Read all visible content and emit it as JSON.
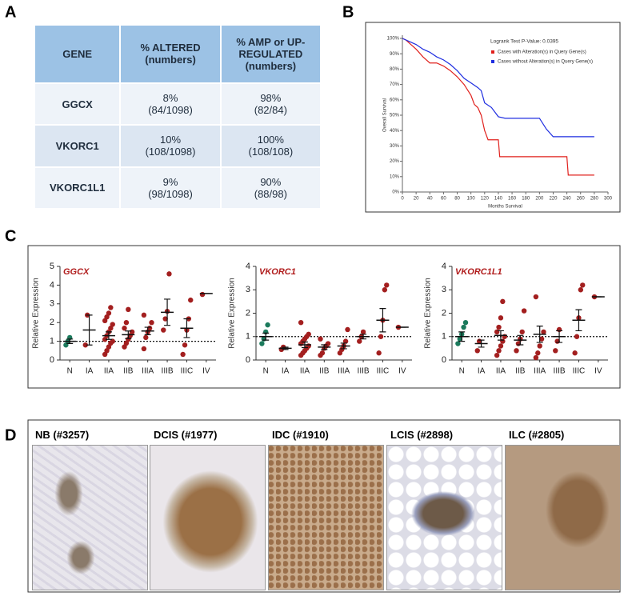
{
  "panel_labels": [
    "A",
    "B",
    "C",
    "D"
  ],
  "table": {
    "header": [
      "GENE",
      "% ALTERED\n(numbers)",
      "% AMP or UP-\nREGULATED\n(numbers)"
    ],
    "rows": [
      [
        "GGCX",
        "8%\n(84/1098)",
        "98%\n(82/84)"
      ],
      [
        "VKORC1",
        "10%\n(108/1098)",
        "100%\n(108/108)"
      ],
      [
        "VKORC1L1",
        "9%\n(98/1098)",
        "90%\n(88/98)"
      ]
    ]
  },
  "image_labels": [
    "NB (#3257)",
    "DCIS (#1977)",
    "IDC (#1910)",
    "LCIS (#2898)",
    "ILC (#2805)"
  ],
  "chart_data": [
    {
      "type": "line",
      "annotation": "Logrank Test P-Value: 0.0395",
      "x_label": "Months Survival",
      "y_label": "Overall Survival",
      "xlim": [
        0,
        300
      ],
      "ylim": [
        0,
        100
      ],
      "xticks": [
        0,
        20,
        40,
        60,
        80,
        100,
        120,
        140,
        160,
        180,
        200,
        220,
        240,
        260,
        280,
        300
      ],
      "yticks": [
        {
          "value": 0,
          "label": "0%"
        },
        {
          "value": 10,
          "label": "10%"
        },
        {
          "value": 20,
          "label": "20%"
        },
        {
          "value": 30,
          "label": "30%"
        },
        {
          "value": 40,
          "label": "40%"
        },
        {
          "value": 50,
          "label": "50%"
        },
        {
          "value": 60,
          "label": "60%"
        },
        {
          "value": 70,
          "label": "70%"
        },
        {
          "value": 80,
          "label": "80%"
        },
        {
          "value": 90,
          "label": "90%"
        },
        {
          "value": 100,
          "label": "100%"
        }
      ],
      "series": [
        {
          "name": "Cases with Alteration(s) in Query Gene(s)",
          "color": "#e0201c",
          "x": [
            0,
            5,
            10,
            20,
            30,
            40,
            50,
            60,
            70,
            80,
            90,
            100,
            105,
            110,
            115,
            120,
            125,
            140,
            142,
            240,
            242,
            280
          ],
          "values": [
            100,
            99,
            97,
            93,
            88,
            84,
            84,
            82,
            79,
            75,
            70,
            63,
            57,
            55,
            50,
            40,
            34,
            34,
            23,
            23,
            11,
            11
          ]
        },
        {
          "name": "Cases without Alteration(s) in Query Gene(s)",
          "color": "#1f2ee0",
          "x": [
            0,
            10,
            20,
            30,
            40,
            50,
            60,
            70,
            80,
            90,
            100,
            110,
            115,
            120,
            130,
            140,
            150,
            200,
            210,
            220,
            280
          ],
          "values": [
            100,
            98,
            96,
            93,
            91,
            88,
            86,
            83,
            79,
            74,
            71,
            68,
            66,
            58,
            55,
            49,
            48,
            48,
            41,
            36,
            36
          ]
        }
      ]
    },
    {
      "type": "strip",
      "title": "GGCX",
      "y_label": "Relative Expression",
      "ylim": [
        0,
        5
      ],
      "yticks": [
        0,
        1,
        2,
        3,
        4,
        5
      ],
      "reference_line": 1,
      "categories": [
        "N",
        "IA",
        "IIA",
        "IIB",
        "IIIA",
        "IIIB",
        "IIIC",
        "IV"
      ],
      "colors": [
        "#1b7a5c",
        "#a31f1f",
        "#a31f1f",
        "#a31f1f",
        "#a31f1f",
        "#a31f1f",
        "#a31f1f",
        "#a31f1f"
      ],
      "points": [
        [
          0.8,
          1.0,
          1.2
        ],
        [
          0.8,
          2.4
        ],
        [
          0.3,
          0.5,
          0.7,
          0.9,
          1.0,
          1.1,
          1.3,
          1.5,
          1.7,
          1.9,
          2.1,
          2.3,
          2.5,
          2.8
        ],
        [
          0.7,
          0.9,
          1.1,
          1.3,
          1.5,
          1.7,
          2.0,
          2.7
        ],
        [
          0.6,
          1.2,
          1.5,
          1.7,
          2.0,
          2.4
        ],
        [
          1.6,
          2.2,
          2.6,
          4.6
        ],
        [
          0.3,
          0.8,
          1.6,
          2.2,
          3.2
        ],
        [
          3.5
        ]
      ],
      "means": [
        1.0,
        1.6,
        1.3,
        1.35,
        1.55,
        2.55,
        1.7,
        3.55
      ],
      "sem": [
        0.12,
        0.8,
        0.2,
        0.2,
        0.2,
        0.7,
        0.5,
        0
      ]
    },
    {
      "type": "strip",
      "title": "VKORC1",
      "y_label": "Relative Expression",
      "ylim": [
        0,
        4
      ],
      "yticks": [
        0,
        1,
        2,
        3,
        4
      ],
      "reference_line": 1,
      "categories": [
        "N",
        "IA",
        "IIA",
        "IIB",
        "IIIA",
        "IIIB",
        "IIIC",
        "IV"
      ],
      "colors": [
        "#1b7a5c",
        "#a31f1f",
        "#a31f1f",
        "#a31f1f",
        "#a31f1f",
        "#a31f1f",
        "#a31f1f",
        "#a31f1f"
      ],
      "points": [
        [
          0.7,
          0.9,
          1.2,
          1.5
        ],
        [
          0.45,
          0.55
        ],
        [
          0.2,
          0.3,
          0.4,
          0.5,
          0.6,
          0.7,
          0.8,
          0.9,
          1.0,
          1.1,
          1.6
        ],
        [
          0.2,
          0.3,
          0.5,
          0.6,
          0.7,
          0.9
        ],
        [
          0.3,
          0.45,
          0.6,
          0.8,
          1.3
        ],
        [
          0.8,
          1.0,
          1.2
        ],
        [
          0.3,
          1.0,
          1.7,
          3.0,
          3.2
        ],
        [
          1.4
        ]
      ],
      "means": [
        1.0,
        0.5,
        0.65,
        0.55,
        0.6,
        1.0,
        1.7,
        1.4
      ],
      "sem": [
        0.15,
        0.05,
        0.12,
        0.1,
        0.12,
        0.1,
        0.5,
        0
      ]
    },
    {
      "type": "strip",
      "title": "VKORC1L1",
      "y_label": "Relative Expression",
      "ylim": [
        0,
        4
      ],
      "yticks": [
        0,
        1,
        2,
        3,
        4
      ],
      "reference_line": 1,
      "categories": [
        "N",
        "IA",
        "IIA",
        "IIB",
        "IIIA",
        "IIIB",
        "IIIC",
        "IV"
      ],
      "colors": [
        "#1b7a5c",
        "#a31f1f",
        "#a31f1f",
        "#a31f1f",
        "#a31f1f",
        "#a31f1f",
        "#a31f1f",
        "#a31f1f"
      ],
      "points": [
        [
          0.7,
          0.9,
          1.1,
          1.4,
          1.6
        ],
        [
          0.4,
          0.8
        ],
        [
          0.2,
          0.4,
          0.6,
          0.8,
          1.0,
          1.2,
          1.4,
          1.8,
          2.5
        ],
        [
          0.4,
          0.7,
          0.9,
          1.2,
          2.1
        ],
        [
          0.1,
          0.3,
          0.6,
          0.9,
          1.2,
          2.7
        ],
        [
          0.4,
          0.8,
          1.3
        ],
        [
          0.3,
          1.0,
          1.8,
          3.0,
          3.2
        ],
        [
          2.7
        ]
      ],
      "means": [
        1.0,
        0.7,
        1.05,
        0.85,
        1.1,
        1.0,
        1.7,
        2.7
      ],
      "sem": [
        0.2,
        0.15,
        0.2,
        0.2,
        0.35,
        0.25,
        0.45,
        0
      ]
    }
  ]
}
